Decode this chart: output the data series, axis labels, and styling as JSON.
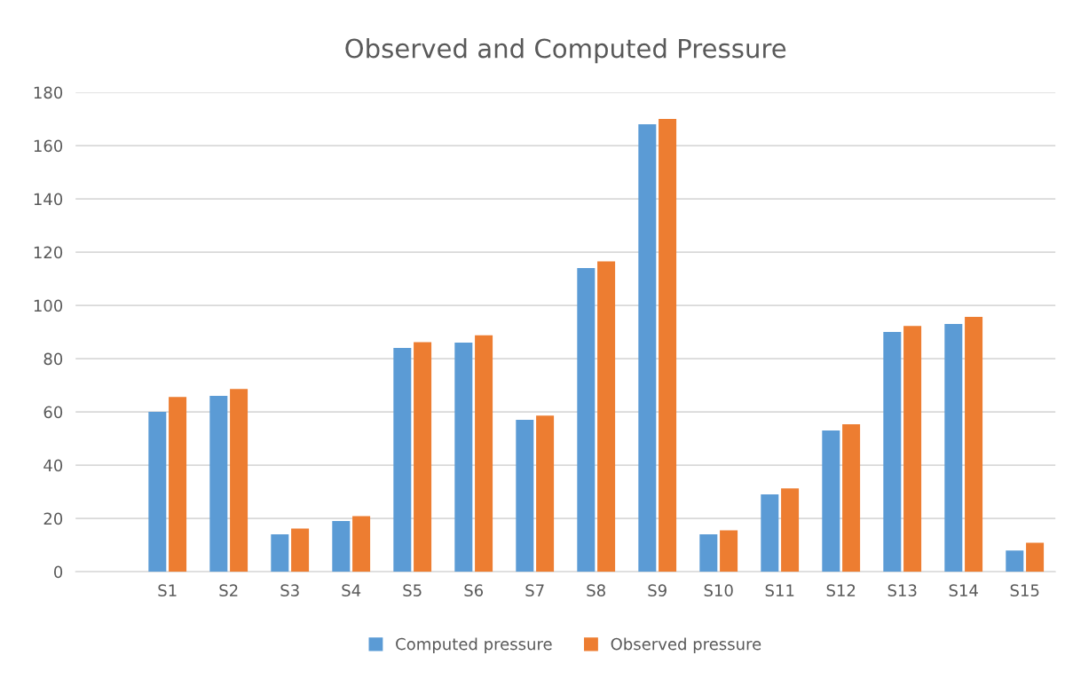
{
  "chart_data": {
    "type": "bar",
    "title": "Observed and Computed Pressure",
    "categories": [
      null,
      "S1",
      "S2",
      "S3",
      "S4",
      "S5",
      "S6",
      "S7",
      "S8",
      "S9",
      "S10",
      "S11",
      "S12",
      "S13",
      "S14",
      "S15"
    ],
    "series": [
      {
        "name": "Computed pressure",
        "color": "#5b9bd5",
        "values": [
          null,
          60,
          66,
          14,
          19,
          84,
          86,
          57,
          114,
          168,
          14,
          29,
          53,
          90,
          93,
          8
        ]
      },
      {
        "name": "Observed pressure",
        "color": "#ed7d31",
        "values": [
          null,
          65.6,
          68.6,
          16.2,
          20.9,
          86.2,
          88.8,
          58.6,
          116.5,
          170,
          15.5,
          31.3,
          55.4,
          92.3,
          95.7,
          10.9
        ]
      }
    ],
    "ylim": [
      0,
      180
    ],
    "yticks": [
      0,
      20,
      40,
      60,
      80,
      100,
      120,
      140,
      160,
      180
    ],
    "grid": "y",
    "legend": "bottom"
  }
}
